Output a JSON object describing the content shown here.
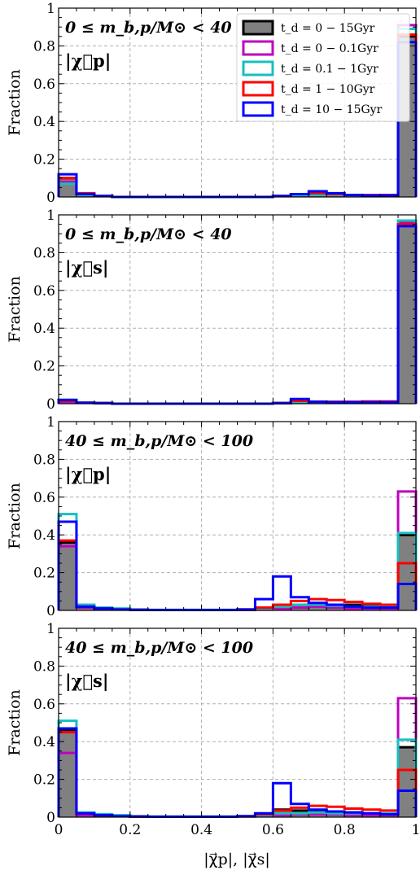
{
  "figure": {
    "xlabel": "|χ⃗p|, |χ⃗s|",
    "ylabel": "Fraction"
  },
  "legend": {
    "entries": [
      {
        "label": "t_d = 0 − 15Gyr",
        "color": "#000000",
        "fill": "#808080"
      },
      {
        "label": "t_d = 0 − 0.1Gyr",
        "color": "#bf00bf",
        "fill": "none"
      },
      {
        "label": "t_d = 0.1 − 1Gyr",
        "color": "#17bfbf",
        "fill": "none"
      },
      {
        "label": "t_d = 1 − 10Gyr",
        "color": "#ff0000",
        "fill": "none"
      },
      {
        "label": "t_d = 10 − 15Gyr",
        "color": "#0000ff",
        "fill": "none"
      }
    ]
  },
  "chart_data": [
    {
      "type": "histogram",
      "mass_label": "0 ≤ m_b,p/M⊙ < 40",
      "spin_label": "|χ⃗p|",
      "ylabel": "Fraction",
      "ylim": [
        0,
        1
      ],
      "yticks": [
        "0",
        "0.2",
        "0.4",
        "0.6",
        "0.8",
        "1"
      ],
      "xlim": [
        0,
        1
      ],
      "bin_width": 0.05,
      "series": [
        {
          "name": "t_d = 0 − 15Gyr",
          "values": [
            0.1,
            0.01,
            0.005,
            0,
            0,
            0,
            0,
            0,
            0,
            0,
            0,
            0,
            0.005,
            0.01,
            0.015,
            0.01,
            0.008,
            0.008,
            0.01,
            0.85
          ]
        },
        {
          "name": "t_d = 0 − 0.1Gyr",
          "values": [
            0.08,
            0.01,
            0.005,
            0,
            0,
            0,
            0,
            0,
            0,
            0,
            0,
            0,
            0.005,
            0.01,
            0.01,
            0.01,
            0.008,
            0.008,
            0.01,
            0.91
          ]
        },
        {
          "name": "t_d = 0.1 − 1Gyr",
          "values": [
            0.07,
            0.01,
            0.005,
            0,
            0,
            0,
            0,
            0,
            0,
            0,
            0,
            0,
            0.005,
            0.01,
            0.01,
            0.01,
            0.008,
            0.008,
            0.01,
            0.89
          ]
        },
        {
          "name": "t_d = 1 − 10Gyr",
          "values": [
            0.1,
            0.02,
            0.005,
            0,
            0,
            0,
            0,
            0,
            0,
            0,
            0,
            0,
            0.005,
            0.015,
            0.02,
            0.015,
            0.01,
            0.01,
            0.01,
            0.86
          ]
        },
        {
          "name": "t_d = 10 − 15Gyr",
          "values": [
            0.12,
            0.015,
            0.005,
            0,
            0,
            0,
            0,
            0,
            0,
            0,
            0,
            0,
            0.005,
            0.015,
            0.03,
            0.02,
            0.01,
            0.008,
            0.008,
            0.82
          ]
        }
      ]
    },
    {
      "type": "histogram",
      "mass_label": "0 ≤ m_b,p/M⊙ < 40",
      "spin_label": "|χ⃗s|",
      "ylabel": "Fraction",
      "ylim": [
        0,
        1
      ],
      "yticks": [
        "0",
        "0.2",
        "0.4",
        "0.6",
        "0.8",
        "1"
      ],
      "xlim": [
        0,
        1
      ],
      "bin_width": 0.05,
      "series": [
        {
          "name": "t_d = 0 − 15Gyr",
          "values": [
            0.02,
            0.005,
            0.003,
            0,
            0,
            0,
            0,
            0,
            0,
            0,
            0,
            0,
            0.003,
            0.015,
            0.01,
            0.008,
            0.008,
            0.008,
            0.008,
            0.95
          ]
        },
        {
          "name": "t_d = 0 − 0.1Gyr",
          "values": [
            0.01,
            0.005,
            0.003,
            0,
            0,
            0,
            0,
            0,
            0,
            0,
            0,
            0,
            0.003,
            0.01,
            0.01,
            0.005,
            0.005,
            0.005,
            0.005,
            0.96
          ]
        },
        {
          "name": "t_d = 0.1 − 1Gyr",
          "values": [
            0.02,
            0.005,
            0.003,
            0,
            0,
            0,
            0,
            0,
            0,
            0,
            0,
            0,
            0.003,
            0.01,
            0.01,
            0.005,
            0.005,
            0.005,
            0.005,
            0.97
          ]
        },
        {
          "name": "t_d = 1 − 10Gyr",
          "values": [
            0.015,
            0.005,
            0.003,
            0,
            0,
            0,
            0,
            0,
            0,
            0,
            0,
            0,
            0.003,
            0.015,
            0.01,
            0.01,
            0.01,
            0.012,
            0.012,
            0.95
          ]
        },
        {
          "name": "t_d = 10 − 15Gyr",
          "values": [
            0.02,
            0.005,
            0.003,
            0,
            0,
            0,
            0,
            0,
            0,
            0,
            0,
            0,
            0.003,
            0.025,
            0.01,
            0.008,
            0.008,
            0.008,
            0.008,
            0.94
          ]
        }
      ]
    },
    {
      "type": "histogram",
      "mass_label": "40 ≤ m_b,p/M⊙ < 100",
      "spin_label": "|χ⃗p|",
      "ylabel": "Fraction",
      "ylim": [
        0,
        1
      ],
      "yticks": [
        "0",
        "0.2",
        "0.4",
        "0.6",
        "0.8",
        "1"
      ],
      "xlim": [
        0,
        1
      ],
      "bin_width": 0.05,
      "series": [
        {
          "name": "t_d = 0 − 15Gyr",
          "values": [
            0.36,
            0.015,
            0.01,
            0.005,
            0.003,
            0.002,
            0.002,
            0.002,
            0.002,
            0.002,
            0.003,
            0.01,
            0.02,
            0.03,
            0.035,
            0.03,
            0.03,
            0.025,
            0.02,
            0.4
          ]
        },
        {
          "name": "t_d = 0 − 0.1Gyr",
          "values": [
            0.34,
            0.015,
            0.01,
            0.005,
            0.003,
            0.002,
            0.002,
            0.002,
            0.002,
            0.002,
            0.003,
            0.005,
            0.01,
            0.015,
            0.02,
            0.015,
            0.01,
            0.01,
            0.01,
            0.63
          ]
        },
        {
          "name": "t_d = 0.1 − 1Gyr",
          "values": [
            0.51,
            0.03,
            0.015,
            0.01,
            0.005,
            0.003,
            0.003,
            0.003,
            0.003,
            0.003,
            0.005,
            0.01,
            0.02,
            0.03,
            0.03,
            0.025,
            0.02,
            0.02,
            0.02,
            0.41
          ]
        },
        {
          "name": "t_d = 1 − 10Gyr",
          "values": [
            0.37,
            0.02,
            0.01,
            0.005,
            0.003,
            0.002,
            0.002,
            0.002,
            0.002,
            0.002,
            0.005,
            0.015,
            0.03,
            0.05,
            0.06,
            0.055,
            0.045,
            0.035,
            0.03,
            0.25
          ]
        },
        {
          "name": "t_d = 10 − 15Gyr",
          "values": [
            0.47,
            0.02,
            0.01,
            0.005,
            0.003,
            0.002,
            0.002,
            0.002,
            0.002,
            0.002,
            0.005,
            0.06,
            0.18,
            0.07,
            0.04,
            0.03,
            0.02,
            0.015,
            0.015,
            0.14
          ]
        }
      ]
    },
    {
      "type": "histogram",
      "mass_label": "40 ≤ m_b,p/M⊙ < 100",
      "spin_label": "|χ⃗s|",
      "ylabel": "Fraction",
      "ylim": [
        0,
        1
      ],
      "yticks": [
        "0",
        "0.2",
        "0.4",
        "0.6",
        "0.8",
        "1"
      ],
      "xticks": [
        "0",
        "0.2",
        "0.4",
        "0.6",
        "0.8",
        "1"
      ],
      "xlim": [
        0,
        1
      ],
      "bin_width": 0.05,
      "series": [
        {
          "name": "t_d = 0 − 15Gyr",
          "values": [
            0.46,
            0.015,
            0.01,
            0.005,
            0.003,
            0.002,
            0.002,
            0.002,
            0.002,
            0.002,
            0.005,
            0.02,
            0.04,
            0.035,
            0.035,
            0.03,
            0.025,
            0.02,
            0.02,
            0.37
          ]
        },
        {
          "name": "t_d = 0 − 0.1Gyr",
          "values": [
            0.34,
            0.01,
            0.01,
            0.005,
            0.003,
            0.002,
            0.002,
            0.002,
            0.002,
            0.002,
            0.003,
            0.005,
            0.01,
            0.015,
            0.015,
            0.015,
            0.01,
            0.01,
            0.01,
            0.63
          ]
        },
        {
          "name": "t_d = 0.1 − 1Gyr",
          "values": [
            0.51,
            0.025,
            0.015,
            0.01,
            0.005,
            0.003,
            0.003,
            0.003,
            0.003,
            0.003,
            0.005,
            0.01,
            0.02,
            0.02,
            0.025,
            0.02,
            0.02,
            0.02,
            0.02,
            0.41
          ]
        },
        {
          "name": "t_d = 1 − 10Gyr",
          "values": [
            0.45,
            0.02,
            0.01,
            0.005,
            0.003,
            0.002,
            0.002,
            0.002,
            0.002,
            0.002,
            0.005,
            0.015,
            0.035,
            0.05,
            0.06,
            0.055,
            0.045,
            0.04,
            0.035,
            0.25
          ]
        },
        {
          "name": "t_d = 10 − 15Gyr",
          "values": [
            0.47,
            0.02,
            0.01,
            0.005,
            0.003,
            0.002,
            0.002,
            0.002,
            0.002,
            0.002,
            0.005,
            0.02,
            0.18,
            0.07,
            0.04,
            0.03,
            0.025,
            0.02,
            0.015,
            0.14
          ]
        }
      ]
    }
  ]
}
